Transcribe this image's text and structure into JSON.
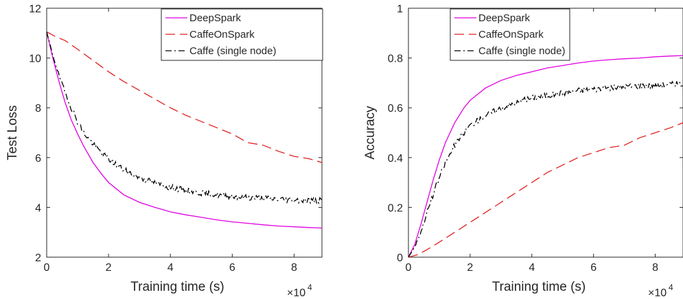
{
  "chart_data": [
    {
      "type": "line",
      "title": "",
      "xlabel": "Training time (s)",
      "ylabel": "Test Loss",
      "x_exponent_label": "×10",
      "x_exponent_power": "4",
      "xlim": [
        0,
        89000
      ],
      "ylim": [
        2,
        12
      ],
      "xticks": [
        0,
        20000,
        40000,
        60000,
        80000
      ],
      "xtick_labels": [
        "0",
        "2",
        "4",
        "6",
        "8"
      ],
      "yticks": [
        2,
        4,
        6,
        8,
        10,
        12
      ],
      "ytick_labels": [
        "2",
        "4",
        "6",
        "8",
        "10",
        "12"
      ],
      "grid": false,
      "legend_position": "top-right",
      "series": [
        {
          "name": "DeepSpark",
          "color": "#e000e0",
          "dash": "solid",
          "x": [
            0,
            2000,
            4000,
            6000,
            8000,
            10000,
            12000,
            15000,
            18000,
            20000,
            25000,
            30000,
            35000,
            40000,
            45000,
            50000,
            55000,
            60000,
            65000,
            70000,
            75000,
            80000,
            85000,
            89000
          ],
          "y": [
            11.05,
            10.0,
            9.05,
            8.2,
            7.5,
            6.95,
            6.45,
            5.8,
            5.3,
            5.0,
            4.5,
            4.2,
            4.0,
            3.82,
            3.7,
            3.6,
            3.5,
            3.42,
            3.36,
            3.3,
            3.25,
            3.22,
            3.19,
            3.17
          ]
        },
        {
          "name": "CaffeOnSpark",
          "color": "#e02020",
          "dash": "dashed",
          "x": [
            0,
            3000,
            6000,
            10000,
            15000,
            20000,
            25000,
            30000,
            35000,
            40000,
            45000,
            50000,
            55000,
            60000,
            65000,
            70000,
            75000,
            80000,
            85000,
            89000
          ],
          "y": [
            11.05,
            10.85,
            10.7,
            10.35,
            9.9,
            9.45,
            9.05,
            8.7,
            8.35,
            8.0,
            7.7,
            7.45,
            7.2,
            6.95,
            6.6,
            6.5,
            6.25,
            6.05,
            5.95,
            5.8
          ]
        },
        {
          "name": "Caffe (single node)",
          "color": "#000000",
          "dash": "dashdot",
          "noise": 0.12,
          "x": [
            0,
            2000,
            4000,
            6000,
            8000,
            10000,
            12000,
            15000,
            18000,
            20000,
            25000,
            30000,
            35000,
            40000,
            45000,
            50000,
            55000,
            60000,
            65000,
            70000,
            75000,
            80000,
            85000,
            89000
          ],
          "y": [
            11.05,
            10.1,
            9.3,
            8.6,
            8.0,
            7.45,
            7.0,
            6.55,
            6.15,
            5.95,
            5.5,
            5.2,
            4.98,
            4.8,
            4.68,
            4.58,
            4.5,
            4.45,
            4.4,
            4.37,
            4.33,
            4.3,
            4.28,
            4.27
          ]
        }
      ]
    },
    {
      "type": "line",
      "title": "",
      "xlabel": "Training time (s)",
      "ylabel": "Accuracy",
      "x_exponent_label": "×10",
      "x_exponent_power": "4",
      "xlim": [
        0,
        89000
      ],
      "ylim": [
        0,
        1
      ],
      "xticks": [
        0,
        20000,
        40000,
        60000,
        80000
      ],
      "xtick_labels": [
        "0",
        "2",
        "4",
        "6",
        "8"
      ],
      "yticks": [
        0,
        0.2,
        0.4,
        0.6,
        0.8,
        1
      ],
      "ytick_labels": [
        "0",
        "0.2",
        "0.4",
        "0.6",
        "0.8",
        "1"
      ],
      "grid": false,
      "legend_position": "top-right",
      "series": [
        {
          "name": "DeepSpark",
          "color": "#e000e0",
          "dash": "solid",
          "x": [
            0,
            2000,
            4000,
            6000,
            8000,
            10000,
            12000,
            15000,
            18000,
            20000,
            25000,
            30000,
            35000,
            40000,
            45000,
            50000,
            55000,
            60000,
            65000,
            70000,
            75000,
            80000,
            85000,
            89000
          ],
          "y": [
            0.0,
            0.05,
            0.13,
            0.22,
            0.31,
            0.39,
            0.46,
            0.54,
            0.6,
            0.63,
            0.68,
            0.71,
            0.73,
            0.745,
            0.76,
            0.77,
            0.78,
            0.788,
            0.793,
            0.797,
            0.8,
            0.805,
            0.808,
            0.81
          ]
        },
        {
          "name": "CaffeOnSpark",
          "color": "#e02020",
          "dash": "dashed",
          "x": [
            0,
            3000,
            6000,
            10000,
            15000,
            20000,
            25000,
            30000,
            35000,
            40000,
            45000,
            50000,
            55000,
            60000,
            65000,
            70000,
            75000,
            80000,
            85000,
            89000
          ],
          "y": [
            0.0,
            0.01,
            0.03,
            0.06,
            0.1,
            0.14,
            0.18,
            0.22,
            0.26,
            0.3,
            0.34,
            0.37,
            0.4,
            0.42,
            0.44,
            0.45,
            0.48,
            0.5,
            0.52,
            0.54
          ]
        },
        {
          "name": "Caffe (single node)",
          "color": "#000000",
          "dash": "dashdot",
          "noise": 0.012,
          "x": [
            0,
            2000,
            4000,
            6000,
            8000,
            10000,
            12000,
            15000,
            18000,
            20000,
            25000,
            30000,
            35000,
            40000,
            45000,
            50000,
            55000,
            60000,
            65000,
            70000,
            75000,
            80000,
            85000,
            89000
          ],
          "y": [
            0.0,
            0.04,
            0.1,
            0.18,
            0.25,
            0.32,
            0.38,
            0.45,
            0.5,
            0.53,
            0.57,
            0.6,
            0.62,
            0.64,
            0.65,
            0.66,
            0.67,
            0.675,
            0.68,
            0.685,
            0.69,
            0.69,
            0.695,
            0.695
          ]
        }
      ]
    }
  ]
}
